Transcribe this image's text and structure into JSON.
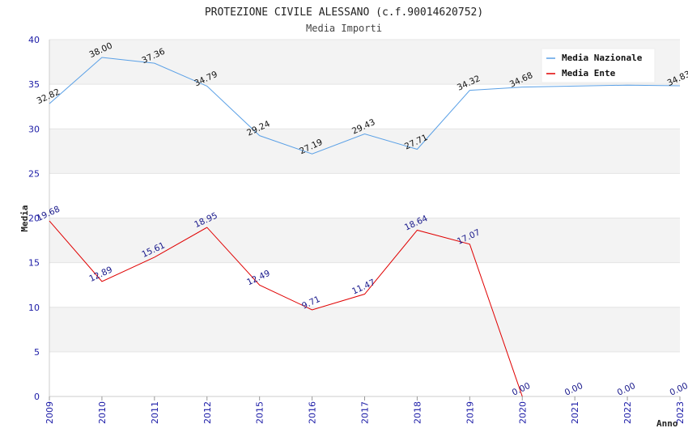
{
  "chart_data": {
    "type": "line",
    "title": "PROTEZIONE CIVILE ALESSANO (c.f.90014620752)",
    "subtitle": "Media Importi",
    "xlabel": "Anno",
    "ylabel": "Media",
    "x": [
      "2009",
      "2010",
      "2011",
      "2012",
      "2015",
      "2016",
      "2017",
      "2018",
      "2019",
      "2020",
      "2021",
      "2022",
      "2023"
    ],
    "ylim": [
      0,
      40
    ],
    "yticks": [
      0,
      5,
      10,
      15,
      20,
      25,
      30,
      35,
      40
    ],
    "grid": true,
    "legend_position": "top-right",
    "series": [
      {
        "name": "Media Nazionale",
        "color": "#5aa0e6",
        "values": [
          32.82,
          38.0,
          37.36,
          34.79,
          29.24,
          27.19,
          29.43,
          27.71,
          34.32,
          34.68,
          34.8,
          34.9,
          34.83
        ],
        "labels": [
          "32.82",
          "38.00",
          "37.36",
          "34.79",
          "29.24",
          "27.19",
          "29.43",
          "27.71",
          "34.32",
          "34.68",
          "",
          "",
          "34.83"
        ]
      },
      {
        "name": "Media Ente",
        "color": "#e00000",
        "values": [
          19.68,
          12.89,
          15.61,
          18.95,
          12.49,
          9.71,
          11.47,
          18.64,
          17.07,
          0.0,
          null,
          null,
          null
        ],
        "labels": [
          "19.68",
          "12.89",
          "15.61",
          "18.95",
          "12.49",
          "9.71",
          "11.47",
          "18.64",
          "17.07",
          "0.00",
          "0.00",
          "0.00",
          "0.00"
        ]
      }
    ]
  }
}
